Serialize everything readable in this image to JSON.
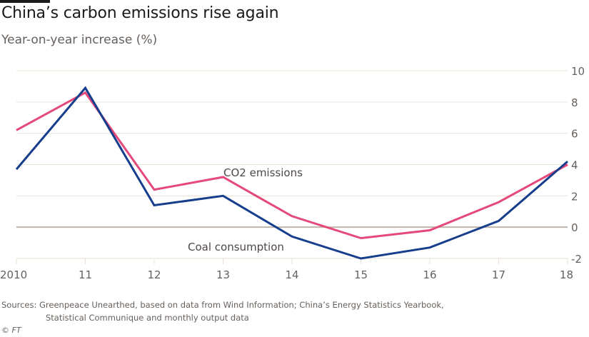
{
  "header": {
    "title": "China’s carbon emissions rise again",
    "subtitle": "Year-on-year increase (%)"
  },
  "colors": {
    "co2": "#e5497a",
    "coal": "#163e8c",
    "grid": "#e9e0d6",
    "zero": "#bfb5a8"
  },
  "chart_data": {
    "type": "line",
    "title": "China’s carbon emissions rise again",
    "subtitle": "Year-on-year increase (%)",
    "xlabel": "",
    "ylabel": "Year-on-year increase (%)",
    "x": [
      2010,
      2011,
      2012,
      2013,
      2014,
      2015,
      2016,
      2017,
      2018
    ],
    "x_tick_labels": [
      "2010",
      "11",
      "12",
      "13",
      "14",
      "15",
      "16",
      "17",
      "18"
    ],
    "y_ticks": [
      10,
      8,
      6,
      4,
      2,
      0,
      -2
    ],
    "y_tick_labels": [
      "10",
      "8",
      "6",
      "4",
      "2",
      "0",
      "-2"
    ],
    "ylim": [
      -2,
      10
    ],
    "grid": true,
    "y_axis_side": "right",
    "series": [
      {
        "name": "CO2 emissions",
        "color": "#e5497a",
        "values": [
          6.2,
          8.6,
          2.4,
          3.2,
          0.7,
          -0.7,
          -0.2,
          1.6,
          4.0
        ]
      },
      {
        "name": "Coal consumption",
        "color": "#163e8c",
        "values": [
          3.7,
          8.9,
          1.4,
          2.0,
          -0.6,
          -2.0,
          -1.3,
          0.4,
          4.2
        ]
      }
    ],
    "annotations": [
      "CO2 emissions",
      "Coal consumption"
    ]
  },
  "footer": {
    "sources_line1": "Sources: Greenpeace Unearthed, based on data from Wind Information; China’s Energy Statistics Yearbook,",
    "sources_line2": "Statistical Communique and monthly output data",
    "copyright": "© FT"
  }
}
